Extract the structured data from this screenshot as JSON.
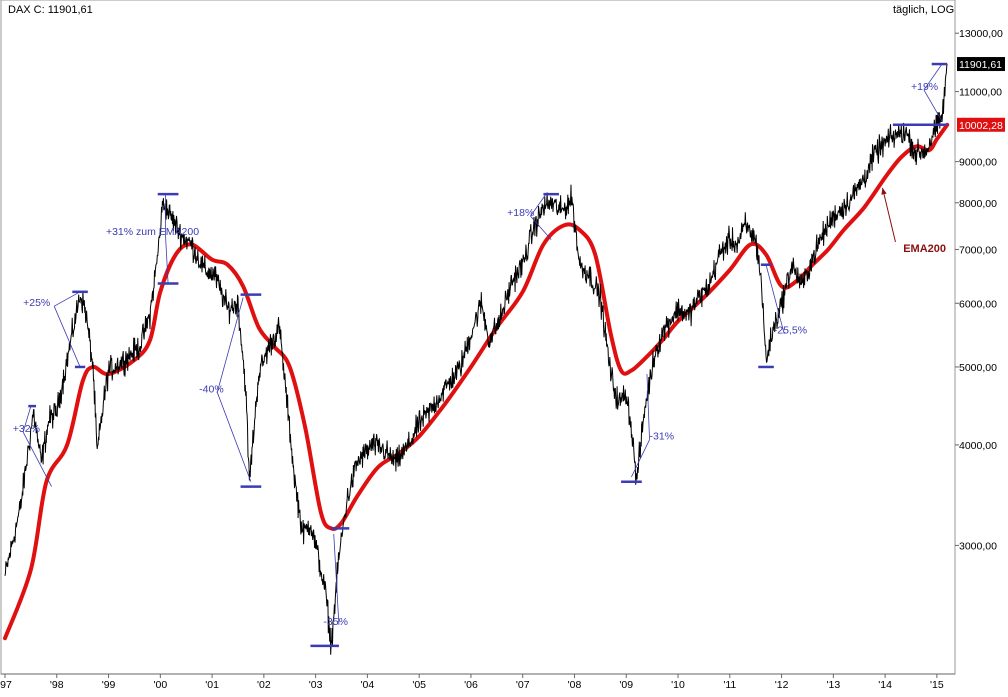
{
  "header": {
    "left": "DAX C: 11901,61",
    "right": "täglich, LOG"
  },
  "price_tags": {
    "last": "11901,61",
    "ema": "10002,28"
  },
  "colors": {
    "price": "#000000",
    "ema": "#e01010",
    "annotation": "#3b3bb3",
    "ema_label": "#8b1010",
    "tag_last_bg": "#000000",
    "tag_ema_bg": "#e01010"
  },
  "chart_data": {
    "type": "line",
    "title": "DAX C: 11901,61",
    "subtitle": "täglich, LOG",
    "y_scale": "log",
    "ylim": [
      2100,
      13500
    ],
    "xlim": [
      1997.0,
      2015.35
    ],
    "grid": false,
    "x_ticks": [
      {
        "x": 1997.0,
        "label": "'97"
      },
      {
        "x": 1998.0,
        "label": "'98"
      },
      {
        "x": 1999.0,
        "label": "'99"
      },
      {
        "x": 2000.0,
        "label": "'00"
      },
      {
        "x": 2001.0,
        "label": "'01"
      },
      {
        "x": 2002.0,
        "label": "'02"
      },
      {
        "x": 2003.0,
        "label": "'03"
      },
      {
        "x": 2004.0,
        "label": "'04"
      },
      {
        "x": 2005.0,
        "label": "'05"
      },
      {
        "x": 2006.0,
        "label": "'06"
      },
      {
        "x": 2007.0,
        "label": "'07"
      },
      {
        "x": 2008.0,
        "label": "'08"
      },
      {
        "x": 2009.0,
        "label": "'09"
      },
      {
        "x": 2010.0,
        "label": "'10"
      },
      {
        "x": 2011.0,
        "label": "'11"
      },
      {
        "x": 2012.0,
        "label": "'12"
      },
      {
        "x": 2013.0,
        "label": "'13"
      },
      {
        "x": 2014.0,
        "label": "'14"
      },
      {
        "x": 2015.0,
        "label": "'15"
      }
    ],
    "y_ticks": [
      {
        "y": 13000,
        "label": "13000,00"
      },
      {
        "y": 11000,
        "label": "11000,00"
      },
      {
        "y": 9000,
        "label": "9000,00"
      },
      {
        "y": 8000,
        "label": "8000,00"
      },
      {
        "y": 7000,
        "label": "7000,00"
      },
      {
        "y": 6000,
        "label": "6000,00"
      },
      {
        "y": 5000,
        "label": "5000,00"
      },
      {
        "y": 4000,
        "label": "4000,00"
      },
      {
        "y": 3000,
        "label": "3000,00"
      }
    ],
    "series": [
      {
        "name": "DAX C",
        "color": "#000000",
        "x": [
          1997.0,
          1997.3,
          1997.55,
          1997.7,
          1997.85,
          1998.0,
          1998.2,
          1998.45,
          1998.55,
          1998.7,
          1998.78,
          1998.9,
          1999.0,
          1999.3,
          1999.6,
          1999.8,
          1999.95,
          2000.05,
          2000.2,
          2000.4,
          2000.6,
          2000.85,
          2001.05,
          2001.3,
          2001.5,
          2001.65,
          2001.72,
          2001.9,
          2002.1,
          2002.3,
          2002.45,
          2002.6,
          2002.75,
          2002.9,
          2003.05,
          2003.2,
          2003.3,
          2003.45,
          2003.6,
          2003.8,
          2003.95,
          2004.1,
          2004.3,
          2004.55,
          2004.8,
          2005.0,
          2005.2,
          2005.5,
          2005.8,
          2006.0,
          2006.2,
          2006.35,
          2006.55,
          2006.8,
          2007.0,
          2007.2,
          2007.4,
          2007.55,
          2007.75,
          2007.95,
          2008.1,
          2008.3,
          2008.5,
          2008.7,
          2008.85,
          2009.0,
          2009.1,
          2009.2,
          2009.35,
          2009.55,
          2009.75,
          2010.0,
          2010.2,
          2010.4,
          2010.6,
          2010.8,
          2011.0,
          2011.15,
          2011.3,
          2011.5,
          2011.6,
          2011.7,
          2011.85,
          2012.0,
          2012.2,
          2012.4,
          2012.55,
          2012.75,
          2013.0,
          2013.2,
          2013.4,
          2013.6,
          2013.8,
          2014.0,
          2014.2,
          2014.4,
          2014.6,
          2014.8,
          2014.95,
          2015.1,
          2015.2
        ],
        "values": [
          2750,
          3350,
          4400,
          3800,
          4300,
          4400,
          5100,
          6150,
          5900,
          5000,
          3900,
          4500,
          4950,
          5100,
          5300,
          5800,
          6900,
          8000,
          7700,
          7300,
          7100,
          6600,
          6500,
          5900,
          6000,
          4700,
          3600,
          4900,
          5300,
          5600,
          4500,
          3600,
          3100,
          3200,
          2900,
          2600,
          2250,
          2900,
          3400,
          3800,
          3900,
          4000,
          3950,
          3800,
          4000,
          4250,
          4400,
          4700,
          5000,
          5500,
          6000,
          5400,
          5700,
          6400,
          6700,
          7400,
          7900,
          8000,
          7800,
          8100,
          6700,
          6500,
          6100,
          4900,
          4500,
          4650,
          4200,
          3600,
          4400,
          5200,
          5600,
          5900,
          5800,
          6100,
          6300,
          6900,
          7200,
          7100,
          7500,
          7200,
          6500,
          5100,
          5600,
          6000,
          6700,
          6300,
          6700,
          7200,
          7700,
          7900,
          8200,
          8600,
          9200,
          9500,
          9700,
          9800,
          9200,
          9300,
          9800,
          10200,
          11901
        ]
      },
      {
        "name": "EMA200",
        "color": "#e01010",
        "x": [
          1997.0,
          1997.5,
          1997.8,
          1998.2,
          1998.5,
          1998.7,
          1999.0,
          1999.5,
          1999.8,
          2000.0,
          2000.3,
          2000.6,
          2001.0,
          2001.3,
          2001.6,
          2001.9,
          2002.2,
          2002.5,
          2002.8,
          2003.1,
          2003.3,
          2003.5,
          2003.8,
          2004.2,
          2004.6,
          2005.0,
          2005.5,
          2006.0,
          2006.5,
          2007.0,
          2007.4,
          2007.8,
          2008.1,
          2008.4,
          2008.7,
          2008.9,
          2009.1,
          2009.4,
          2009.7,
          2010.0,
          2010.5,
          2011.0,
          2011.4,
          2011.7,
          2012.0,
          2012.3,
          2012.6,
          2012.9,
          2013.2,
          2013.6,
          2014.0,
          2014.3,
          2014.6,
          2014.85,
          2015.0,
          2015.2
        ],
        "values": [
          2300,
          2800,
          3600,
          4000,
          4800,
          5000,
          4900,
          5100,
          5400,
          6200,
          6900,
          7100,
          6800,
          6700,
          6300,
          5600,
          5300,
          5000,
          4200,
          3300,
          3150,
          3200,
          3450,
          3750,
          3900,
          4100,
          4500,
          5000,
          5600,
          6200,
          7100,
          7500,
          7400,
          6900,
          5500,
          4950,
          4950,
          5150,
          5400,
          5700,
          6100,
          6600,
          7100,
          6900,
          6300,
          6400,
          6700,
          7000,
          7400,
          7900,
          8600,
          9100,
          9400,
          9300,
          9600,
          10002
        ]
      }
    ],
    "annotations": [
      {
        "text": "+32%",
        "x": 1997.15,
        "y": 4150
      },
      {
        "text": "+25%",
        "x": 1997.35,
        "y": 5950
      },
      {
        "text": "+31% zum EMA200",
        "x": 1998.95,
        "y": 7300
      },
      {
        "text": "-40%",
        "x": 2000.75,
        "y": 4650
      },
      {
        "text": "-35%",
        "x": 2003.15,
        "y": 2390
      },
      {
        "text": "+18%",
        "x": 2006.7,
        "y": 7700
      },
      {
        "text": "-31%",
        "x": 2009.45,
        "y": 4060
      },
      {
        "text": "-25,5%",
        "x": 2011.85,
        "y": 5500
      },
      {
        "text": "+19%",
        "x": 2014.5,
        "y": 11050
      },
      {
        "text": "EMA200",
        "x": 2014.35,
        "y": 6950,
        "style": "red"
      }
    ],
    "brackets": [
      {
        "x1": 1997.45,
        "x2": 1997.6,
        "y": 4470
      },
      {
        "x1": 1998.3,
        "x2": 1998.6,
        "y": 6200
      },
      {
        "x1": 1998.35,
        "x2": 1998.55,
        "y": 5000
      },
      {
        "x1": 1999.95,
        "x2": 2000.35,
        "y": 8200
      },
      {
        "x1": 1999.95,
        "x2": 2000.35,
        "y": 6350
      },
      {
        "x1": 2001.55,
        "x2": 2001.95,
        "y": 6150
      },
      {
        "x1": 2001.55,
        "x2": 2001.95,
        "y": 3550
      },
      {
        "x1": 2002.9,
        "x2": 2003.45,
        "y": 2250
      },
      {
        "x1": 2003.3,
        "x2": 2003.65,
        "y": 3150
      },
      {
        "x1": 2007.4,
        "x2": 2007.7,
        "y": 8200
      },
      {
        "x1": 2008.9,
        "x2": 2009.3,
        "y": 3600
      },
      {
        "x1": 2011.55,
        "x2": 2011.85,
        "y": 5000
      },
      {
        "x1": 2011.6,
        "x2": 2011.8,
        "y": 6700
      },
      {
        "x1": 2014.15,
        "x2": 2015.2,
        "y": 10002
      },
      {
        "x1": 2014.9,
        "x2": 2015.2,
        "y": 11901
      }
    ],
    "leader_lines": [
      {
        "from": [
          1997.35,
          4150
        ],
        "to": [
          1997.5,
          4470
        ]
      },
      {
        "from": [
          1997.35,
          4150
        ],
        "to": [
          1997.9,
          3550
        ]
      },
      {
        "from": [
          1997.95,
          5950
        ],
        "to": [
          1998.45,
          6200
        ]
      },
      {
        "from": [
          1997.95,
          5950
        ],
        "to": [
          1998.45,
          5000
        ]
      },
      {
        "from": [
          2000.1,
          7300
        ],
        "to": [
          2000.1,
          8200
        ]
      },
      {
        "from": [
          2000.1,
          7300
        ],
        "to": [
          2000.15,
          6350
        ]
      },
      {
        "from": [
          2001.1,
          4650
        ],
        "to": [
          2001.6,
          6100
        ]
      },
      {
        "from": [
          2001.1,
          4650
        ],
        "to": [
          2001.75,
          3600
        ]
      },
      {
        "from": [
          2003.45,
          2390
        ],
        "to": [
          2003.35,
          3100
        ]
      },
      {
        "from": [
          2007.15,
          7700
        ],
        "to": [
          2007.45,
          8200
        ]
      },
      {
        "from": [
          2007.15,
          7700
        ],
        "to": [
          2007.55,
          7200
        ]
      },
      {
        "from": [
          2009.45,
          4060
        ],
        "to": [
          2009.1,
          3650
        ]
      },
      {
        "from": [
          2009.45,
          4060
        ],
        "to": [
          2009.4,
          4900
        ]
      },
      {
        "from": [
          2012.05,
          5500
        ],
        "to": [
          2011.7,
          6700
        ]
      },
      {
        "from": [
          2014.75,
          11050
        ],
        "to": [
          2015.1,
          11901
        ]
      },
      {
        "from": [
          2014.75,
          11050
        ],
        "to": [
          2015.1,
          10100
        ]
      }
    ],
    "arrow": {
      "from": [
        2014.2,
        7150
      ],
      "to": [
        2013.95,
        8350
      ]
    }
  }
}
